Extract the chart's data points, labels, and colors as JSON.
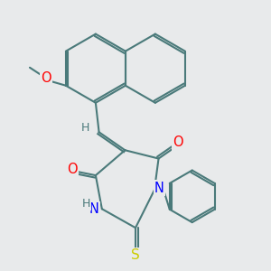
{
  "background_color": "#e8eaeb",
  "bond_color": "#4a7a7a",
  "atom_colors": {
    "O": "#ff0000",
    "N": "#0000ff",
    "S": "#cccc00",
    "H": "#4a7a7a",
    "C": "#4a7a7a"
  },
  "bond_width": 1.5,
  "font_size_atom": 10.5,
  "font_size_H": 9
}
